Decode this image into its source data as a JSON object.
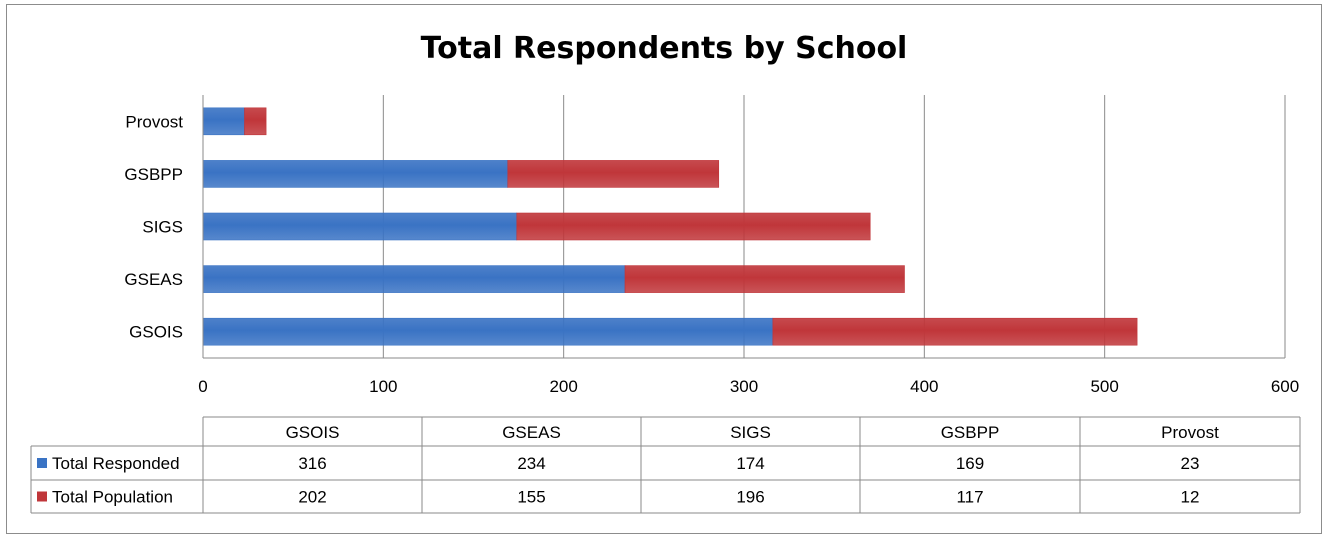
{
  "chart_data": {
    "type": "bar",
    "orientation": "horizontal",
    "stacked": true,
    "title": "Total Respondents by School",
    "categories": [
      "GSOIS",
      "GSEAS",
      "SIGS",
      "GSBPP",
      "Provost"
    ],
    "series": [
      {
        "name": "Total Responded",
        "color": "#3a73c4",
        "values": [
          316,
          234,
          174,
          169,
          23
        ]
      },
      {
        "name": "Total Population",
        "color": "#c0363a",
        "values": [
          202,
          155,
          196,
          117,
          12
        ]
      }
    ],
    "xlim": [
      0,
      600
    ],
    "xticks": [
      "0",
      "100",
      "200",
      "300",
      "400",
      "500",
      "600"
    ],
    "grid": true,
    "legend": "data-table",
    "table": {
      "headers": [
        "GSOIS",
        "GSEAS",
        "SIGS",
        "GSBPP",
        "Provost"
      ],
      "rows": [
        {
          "label": "Total Responded",
          "values": [
            "316",
            "234",
            "174",
            "169",
            "23"
          ]
        },
        {
          "label": "Total Population",
          "values": [
            "202",
            "155",
            "196",
            "117",
            "12"
          ]
        }
      ]
    }
  }
}
